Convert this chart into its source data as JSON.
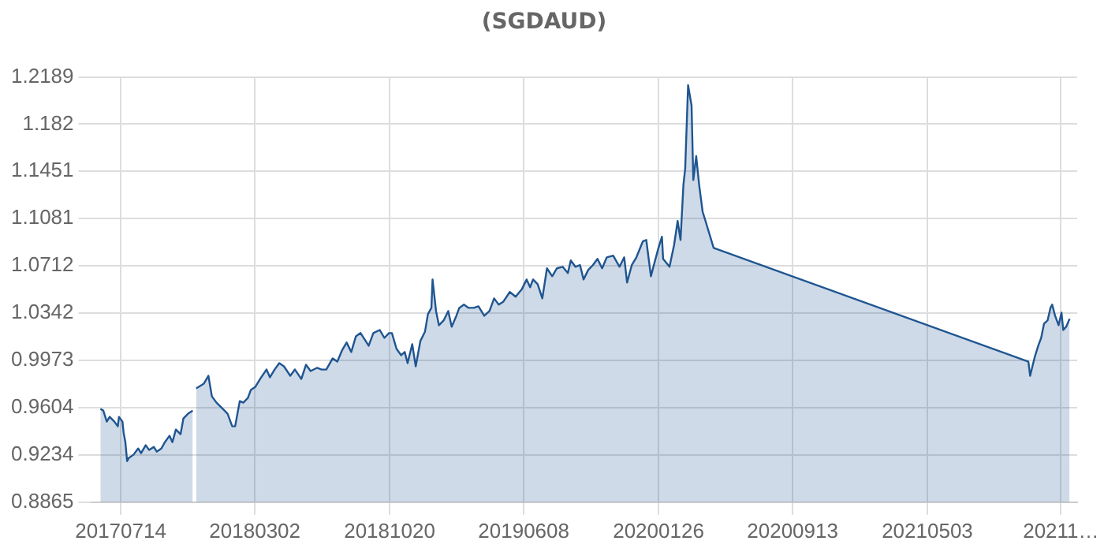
{
  "chart_data": {
    "type": "area",
    "title": "(SGDAUD)",
    "x": [
      "2017-06-09",
      "2017-06-14",
      "2017-06-20",
      "2017-06-25",
      "2017-07-03",
      "2017-07-09",
      "2017-07-11",
      "2017-07-17",
      "2017-07-19",
      "2017-07-22",
      "2017-07-25",
      "2017-07-28",
      "2017-08-05",
      "2017-08-13",
      "2017-08-18",
      "2017-08-26",
      "2017-09-01",
      "2017-09-09",
      "2017-09-14",
      "2017-09-22",
      "2017-09-28",
      "2017-10-06",
      "2017-10-11",
      "2017-10-17",
      "2017-10-25",
      "2017-10-30",
      "2017-11-07",
      "2017-11-15",
      "2017-11-18",
      "2017-11-21",
      "2017-12-04",
      "2017-12-12",
      "2017-12-18",
      "2017-12-26",
      "2018-01-06",
      "2018-01-14",
      "2018-01-22",
      "2018-01-27",
      "2018-02-04",
      "2018-02-10",
      "2018-02-18",
      "2018-02-23",
      "2018-03-03",
      "2018-03-11",
      "2018-03-22",
      "2018-03-28",
      "2018-04-05",
      "2018-04-13",
      "2018-04-21",
      "2018-05-02",
      "2018-05-10",
      "2018-05-21",
      "2018-05-29",
      "2018-06-06",
      "2018-06-17",
      "2018-06-25",
      "2018-07-03",
      "2018-07-14",
      "2018-07-22",
      "2018-07-30",
      "2018-08-07",
      "2018-08-15",
      "2018-08-23",
      "2018-08-31",
      "2018-09-14",
      "2018-09-22",
      "2018-10-03",
      "2018-10-11",
      "2018-10-19",
      "2018-10-24",
      "2018-11-01",
      "2018-11-09",
      "2018-11-15",
      "2018-11-20",
      "2018-11-28",
      "2018-12-04",
      "2018-12-12",
      "2018-12-20",
      "2018-12-25",
      "2018-12-31",
      "2019-01-02",
      "2019-01-08",
      "2019-01-13",
      "2019-01-21",
      "2019-01-29",
      "2019-02-04",
      "2019-02-12",
      "2019-02-17",
      "2019-02-25",
      "2019-03-05",
      "2019-03-14",
      "2019-03-22",
      "2019-04-01",
      "2019-04-10",
      "2019-04-18",
      "2019-04-26",
      "2019-05-04",
      "2019-05-15",
      "2019-05-25",
      "2019-06-05",
      "2019-06-13",
      "2019-06-19",
      "2019-06-24",
      "2019-07-02",
      "2019-07-10",
      "2019-07-18",
      "2019-07-27",
      "2019-08-04",
      "2019-08-14",
      "2019-08-23",
      "2019-08-28",
      "2019-09-05",
      "2019-09-13",
      "2019-09-19",
      "2019-09-27",
      "2019-10-05",
      "2019-10-13",
      "2019-10-21",
      "2019-10-29",
      "2019-11-09",
      "2019-11-20",
      "2019-11-28",
      "2019-12-03",
      "2019-12-11",
      "2019-12-19",
      "2019-12-30",
      "2020-01-05",
      "2020-01-13",
      "2020-01-18",
      "2020-01-26",
      "2020-02-01",
      "2020-02-03",
      "2020-02-14",
      "2020-02-22",
      "2020-02-28",
      "2020-03-04",
      "2020-03-09",
      "2020-03-12",
      "2020-03-17",
      "2020-03-23",
      "2020-03-26",
      "2020-03-31",
      "2020-04-05",
      "2020-04-11",
      "2020-04-16",
      "2020-04-30",
      "2021-10-24",
      "2021-10-27",
      "2021-11-04",
      "2021-11-10",
      "2021-11-15",
      "2021-11-20",
      "2021-11-26",
      "2021-12-01",
      "2021-12-04",
      "2021-12-09",
      "2021-12-15",
      "2021-12-20",
      "2021-12-23",
      "2021-12-28",
      "2022-01-03"
    ],
    "series": [
      {
        "color": "#1f5591",
        "values": [
          0.9594,
          0.9581,
          0.9495,
          0.9532,
          0.9495,
          0.9458,
          0.9532,
          0.9495,
          0.9408,
          0.9334,
          0.9186,
          0.9211,
          0.9236,
          0.9285,
          0.9248,
          0.931,
          0.9273,
          0.9297,
          0.926,
          0.9285,
          0.9334,
          0.9384,
          0.9334,
          0.9433,
          0.9396,
          0.952,
          0.9557,
          0.9581,
          null,
          0.9754,
          0.9791,
          0.9853,
          0.9692,
          0.9643,
          0.9594,
          0.9557,
          0.9458,
          0.9458,
          0.9655,
          0.9643,
          0.968,
          0.9742,
          0.9767,
          0.9828,
          0.9902,
          0.9841,
          0.9902,
          0.9952,
          0.9927,
          0.9853,
          0.9902,
          0.9828,
          0.9939,
          0.989,
          0.9915,
          0.9902,
          0.9902,
          0.9989,
          0.9964,
          1.0051,
          1.0113,
          1.0039,
          1.0162,
          1.0187,
          1.0088,
          1.0187,
          1.0211,
          1.0149,
          1.0187,
          1.0187,
          1.0063,
          1.0014,
          1.0039,
          0.9952,
          1.01,
          0.9927,
          1.0125,
          1.0199,
          1.0335,
          1.0384,
          1.0606,
          1.0359,
          1.0248,
          1.0285,
          1.0359,
          1.0236,
          1.0322,
          1.0384,
          1.0409,
          1.0384,
          1.0384,
          1.0396,
          1.0322,
          1.0359,
          1.0458,
          1.0409,
          1.0433,
          1.0508,
          1.0471,
          1.0532,
          1.0606,
          1.0545,
          1.0606,
          1.0569,
          1.0458,
          1.0693,
          1.0631,
          1.0693,
          1.0705,
          1.0656,
          1.0755,
          1.0705,
          1.0718,
          1.0606,
          1.068,
          1.0718,
          1.0767,
          1.0693,
          1.0779,
          1.0792,
          1.0705,
          1.0779,
          1.0582,
          1.0718,
          1.0779,
          1.0903,
          1.0915,
          1.0631,
          1.0718,
          1.0853,
          1.094,
          1.0767,
          1.0705,
          1.0878,
          1.1063,
          1.0915,
          1.1347,
          1.1471,
          1.2125,
          1.1965,
          1.1384,
          1.157,
          1.1347,
          1.1137,
          1.1063,
          1.0853,
          0.9964,
          0.9853,
          1.0001,
          1.0088,
          1.0149,
          1.0261,
          1.0285,
          1.0384,
          1.0409,
          1.0322,
          1.0248,
          1.0347,
          1.0211,
          1.0236,
          1.0298
        ]
      }
    ],
    "xlim": [
      "2017-05-24",
      "2022-01-16"
    ],
    "xticks": [
      {
        "value": "2017-07-14",
        "label": "20170714"
      },
      {
        "value": "2018-03-02",
        "label": "20180302"
      },
      {
        "value": "2018-10-20",
        "label": "20181020"
      },
      {
        "value": "2019-06-08",
        "label": "20190608"
      },
      {
        "value": "2020-01-26",
        "label": "20200126"
      },
      {
        "value": "2020-09-13",
        "label": "20200913"
      },
      {
        "value": "2021-05-03",
        "label": "20210503"
      },
      {
        "value": "2021-12-19",
        "label": "20211…"
      }
    ],
    "ylim": [
      0.8865,
      1.2189
    ],
    "yticks": [
      0.8865,
      0.9234,
      0.9604,
      0.9973,
      1.0342,
      1.0712,
      1.1081,
      1.1451,
      1.182,
      1.2189
    ],
    "grid": true,
    "marker": "none",
    "line_style": "solid"
  }
}
